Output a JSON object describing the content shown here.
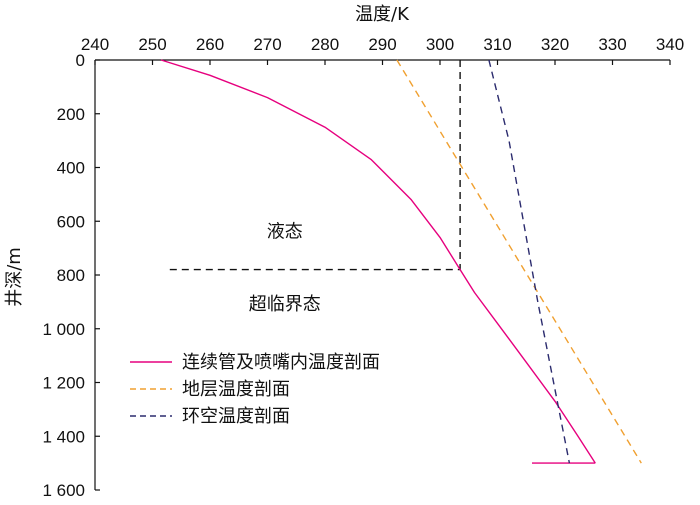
{
  "chart_data": {
    "type": "line",
    "xlabel": "温度/K",
    "ylabel": "井深/m",
    "xlim": [
      240,
      340
    ],
    "ylim": [
      0,
      1600
    ],
    "y_inverted": true,
    "x_axis_position": "top",
    "x_ticks": [
      "240",
      "250",
      "260",
      "270",
      "280",
      "290",
      "300",
      "310",
      "320",
      "330",
      "340"
    ],
    "y_ticks": [
      "0",
      "200",
      "400",
      "600",
      "800",
      "1 000",
      "1 200",
      "1 400",
      "1 600"
    ],
    "grid": false,
    "legend_position": "lower-left",
    "series": [
      {
        "name": "连续管及喷嘴内温度剖面",
        "color": "#e6007e",
        "style": "solid",
        "x": [
          251.5,
          260,
          270,
          280,
          288,
          295,
          300,
          303.5,
          306,
          310,
          315,
          320,
          324,
          327
        ],
        "y": [
          0,
          57,
          140,
          250,
          370,
          520,
          660,
          780,
          865,
          980,
          1125,
          1270,
          1400,
          1500
        ]
      },
      {
        "name": "地层温度剖面",
        "color": "#f0a030",
        "style": "dashed",
        "x": [
          292.5,
          335
        ],
        "y": [
          0,
          1500
        ]
      },
      {
        "name": "环空温度剖面",
        "color": "#2b2b6e",
        "style": "dashed",
        "x": [
          308.5,
          312,
          317,
          322.5
        ],
        "y": [
          0,
          300,
          900,
          1500
        ]
      }
    ],
    "reference_lines": [
      {
        "x": [
          303.5,
          303.5
        ],
        "y": [
          0,
          780
        ],
        "color": "#111111",
        "style": "dashed"
      },
      {
        "x": [
          253,
          303.5
        ],
        "y": [
          780,
          780
        ],
        "color": "#111111",
        "style": "dashed"
      },
      {
        "x": [
          316,
          327
        ],
        "y": [
          1500,
          1500
        ],
        "color": "#e6007e",
        "style": "solid"
      }
    ],
    "annotations": [
      {
        "text": "液态",
        "x": 273,
        "y": 660
      },
      {
        "text": "超临界态",
        "x": 273,
        "y": 930
      }
    ]
  }
}
